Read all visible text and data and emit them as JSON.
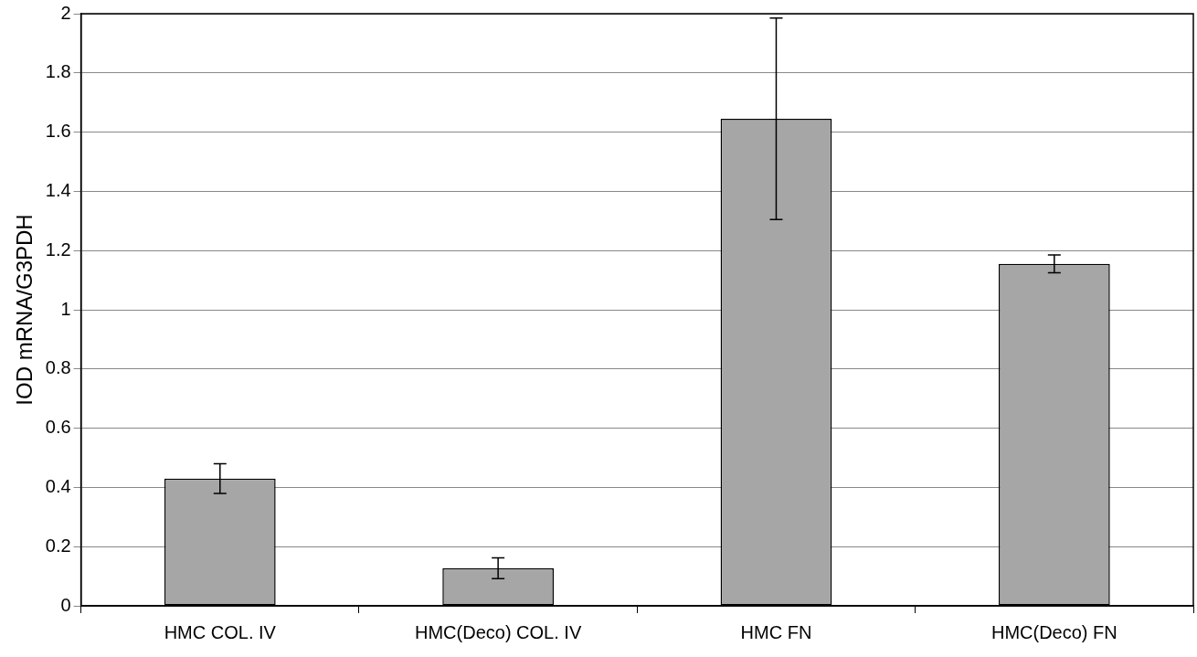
{
  "chart_data": {
    "type": "bar",
    "ylabel": "IOD mRNA/G3PDH",
    "categories": [
      "HMC COL. IV",
      "HMC(Deco) COL. IV",
      "HMC FN",
      "HMC(Deco) FN"
    ],
    "values": [
      0.43,
      0.127,
      1.645,
      1.155
    ],
    "errors": [
      0.05,
      0.035,
      0.34,
      0.03
    ],
    "color": "#a6a6a6",
    "ylim": [
      0,
      2
    ],
    "yticks": [
      0,
      0.2,
      0.4,
      0.6,
      0.8,
      1,
      1.2,
      1.4,
      1.6,
      1.8,
      2
    ],
    "grid": "y"
  }
}
